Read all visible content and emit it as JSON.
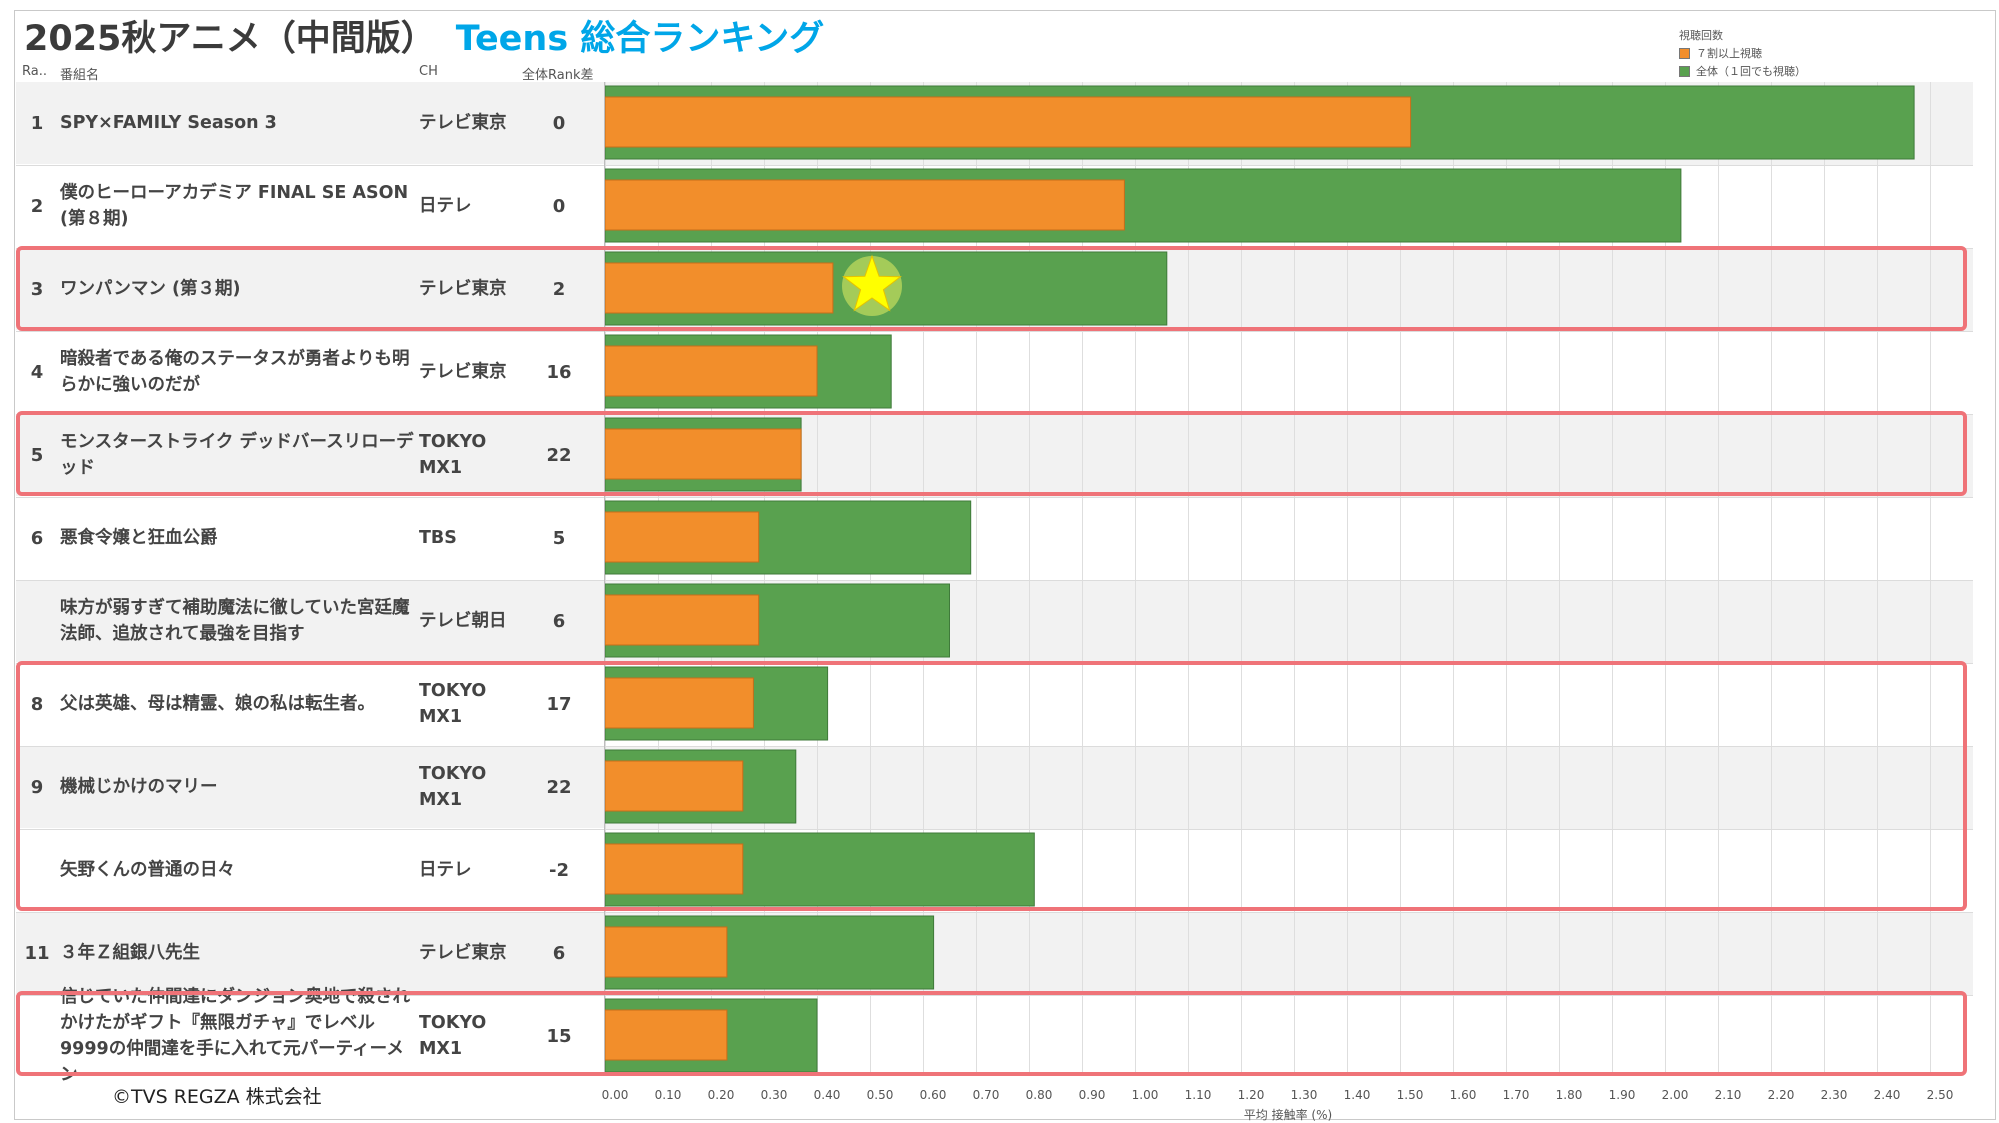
{
  "title": {
    "main": "2025秋アニメ（中間版）",
    "sub": "Teens 総合ランキング"
  },
  "legend": {
    "title": "視聴回数",
    "items": [
      {
        "label": "７割以上視聴",
        "color": "#f28e2b"
      },
      {
        "label": "全体（１回でも視聴）",
        "color": "#59a14f"
      }
    ]
  },
  "columns": {
    "rank": "Ra..",
    "name": "番組名",
    "channel": "CH",
    "rank_diff": "全体Rank差"
  },
  "rows": [
    {
      "rank": "1",
      "name": "SPY×FAMILY Season 3",
      "channel": "テレビ東京",
      "rank_diff": "0"
    },
    {
      "rank": "2",
      "name": "僕のヒーローアカデミア FINAL SE ASON (第８期)",
      "channel": "日テレ",
      "rank_diff": "0"
    },
    {
      "rank": "3",
      "name": "ワンパンマン (第３期)",
      "channel": "テレビ東京",
      "rank_diff": "2"
    },
    {
      "rank": "4",
      "name": "暗殺者である俺のステータスが勇者よりも明らかに強いのだが",
      "channel": "テレビ東京",
      "rank_diff": "16"
    },
    {
      "rank": "5",
      "name": "モンスターストライク デッドバースリローデッド",
      "channel": "TOKYO MX1",
      "rank_diff": "22"
    },
    {
      "rank": "6",
      "name": "悪食令嬢と狂血公爵",
      "channel": "TBS",
      "rank_diff": "5"
    },
    {
      "rank": "",
      "name": "味方が弱すぎて補助魔法に徹していた宮廷魔法師、追放されて最強を目指す",
      "channel": "テレビ朝日",
      "rank_diff": "6"
    },
    {
      "rank": "8",
      "name": "父は英雄、母は精霊、娘の私は転生者。",
      "channel": "TOKYO MX1",
      "rank_diff": "17"
    },
    {
      "rank": "9",
      "name": "機械じかけのマリー",
      "channel": "TOKYO MX1",
      "rank_diff": "22"
    },
    {
      "rank": "",
      "name": "矢野くんの普通の日々",
      "channel": "日テレ",
      "rank_diff": "-2"
    },
    {
      "rank": "11",
      "name": "３年Ｚ組銀八先生",
      "channel": "テレビ東京",
      "rank_diff": "6"
    },
    {
      "rank": "",
      "name": "信じていた仲間達にダンジョン奥地で殺されかけたがギフト『無限ガチャ』でレベル9999の仲間達を手に入れて元パーティーメン",
      "channel": "TOKYO MX1",
      "rank_diff": "15"
    }
  ],
  "chart_data": {
    "type": "bar",
    "orientation": "horizontal",
    "categories": [
      "SPY×FAMILY Season 3",
      "僕のヒーローアカデミア FINAL SE ASON (第８期)",
      "ワンパンマン (第３期)",
      "暗殺者である俺のステータスが勇者よりも明らかに強いのだが",
      "モンスターストライク デッドバースリローデッド",
      "悪食令嬢と狂血公爵",
      "味方が弱すぎて補助魔法に徹していた宮廷魔法師、追放されて最強を目指す",
      "父は英雄、母は精霊、娘の私は転生者。",
      "機械じかけのマリー",
      "矢野くんの普通の日々",
      "３年Ｚ組銀八先生",
      "信じていた仲間達にダンジョン奥地で殺されかけたがギフト『無限ガチャ』でレベル9999の仲間達を手に入れて元パーティーメン"
    ],
    "series": [
      {
        "name": "全体（１回でも視聴）",
        "color": "#59a14f",
        "values": [
          2.47,
          2.03,
          1.06,
          0.54,
          0.37,
          0.69,
          0.65,
          0.42,
          0.36,
          0.81,
          0.62,
          0.4
        ]
      },
      {
        "name": "７割以上視聴",
        "color": "#f28e2b",
        "values": [
          1.52,
          0.98,
          0.43,
          0.4,
          0.37,
          0.29,
          0.29,
          0.28,
          0.26,
          0.26,
          0.23,
          0.23
        ]
      }
    ],
    "xlabel": "平均 接触率 (%)",
    "ylabel": "",
    "xlim": [
      0,
      2.5
    ],
    "xticks": [
      "0.00",
      "0.10",
      "0.20",
      "0.30",
      "0.40",
      "0.50",
      "0.60",
      "0.70",
      "0.80",
      "0.90",
      "1.00",
      "1.10",
      "1.20",
      "1.30",
      "1.40",
      "1.50",
      "1.60",
      "1.70",
      "1.80",
      "1.90",
      "2.00",
      "2.10",
      "2.20",
      "2.30",
      "2.40",
      "2.50"
    ],
    "grid": true,
    "legend_position": "top-right",
    "marker": {
      "row_index": 2,
      "value": 0.5,
      "symbol": "star",
      "color": "#ffff00"
    }
  },
  "copyright": "©TVS REGZA 株式会社"
}
